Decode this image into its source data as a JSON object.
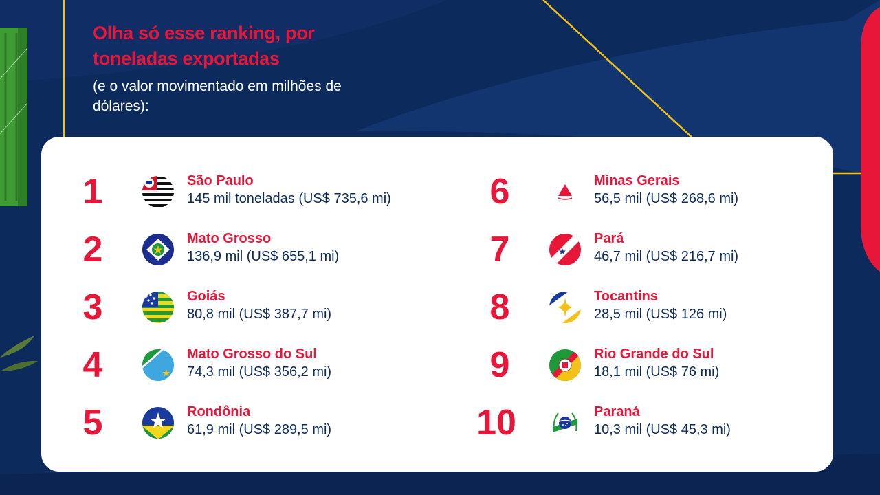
{
  "header": {
    "title": "Olha só esse ranking, por toneladas exportadas",
    "subtitle": "(e o valor movimentado em milhões de dólares):"
  },
  "ranking": [
    {
      "rank": "1",
      "state": "São Paulo",
      "value": "145 mil toneladas (US$ 735,6 mi)"
    },
    {
      "rank": "2",
      "state": "Mato Grosso",
      "value": "136,9 mil (US$ 655,1 mi)"
    },
    {
      "rank": "3",
      "state": "Goiás",
      "value": "80,8 mil (US$ 387,7 mi)"
    },
    {
      "rank": "4",
      "state": "Mato Grosso do Sul",
      "value": "74,3 mil (US$ 356,2 mi)"
    },
    {
      "rank": "5",
      "state": "Rondônia",
      "value": "61,9 mil (US$ 289,5 mi)"
    },
    {
      "rank": "6",
      "state": "Minas Gerais",
      "value": "56,5 mil (US$ 268,6 mi)"
    },
    {
      "rank": "7",
      "state": "Pará",
      "value": "46,7 mil (US$ 216,7 mi)"
    },
    {
      "rank": "8",
      "state": "Tocantins",
      "value": "28,5 mil (US$ 126 mi)"
    },
    {
      "rank": "9",
      "state": "Rio Grande do Sul",
      "value": "18,1 mil (US$ 76 mi)"
    },
    {
      "rank": "10",
      "state": "Paraná",
      "value": "10,3 mil (US$ 45,3 mi)"
    }
  ],
  "colors": {
    "accent": "#e8173a",
    "navy": "#0d2a5c",
    "gold": "#f2c21b",
    "container_green": "#3f9b33"
  },
  "icons": [
    "sao-paulo-flag-icon",
    "mato-grosso-flag-icon",
    "goias-flag-icon",
    "mato-grosso-do-sul-flag-icon",
    "rondonia-flag-icon",
    "minas-gerais-flag-icon",
    "para-flag-icon",
    "tocantins-flag-icon",
    "rio-grande-do-sul-flag-icon",
    "parana-flag-icon"
  ]
}
